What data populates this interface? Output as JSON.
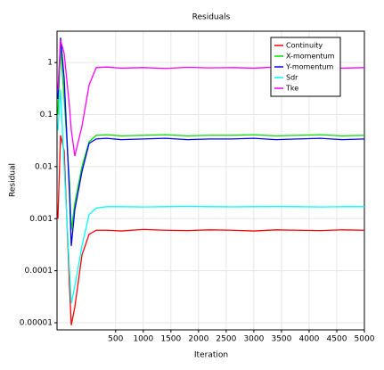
{
  "chart_data": {
    "type": "line",
    "title": "Residuals",
    "x_label": "Iteration",
    "y_label": "Residual",
    "x": [
      -544,
      -496,
      -431,
      -334,
      -302,
      -238,
      -109,
      20,
      149,
      342,
      600,
      1000,
      1400,
      1800,
      2200,
      2600,
      3000,
      3400,
      3800,
      4200,
      4600,
      5000
    ],
    "series": [
      {
        "name": "Continuity",
        "color": "#ff0000",
        "values": [
          0.001,
          0.04,
          0.02,
          5e-05,
          9e-06,
          2e-05,
          0.0002,
          0.0005,
          0.0006,
          0.0006,
          0.00058,
          0.00062,
          0.0006,
          0.00059,
          0.00061,
          0.0006,
          0.00058,
          0.00061,
          0.0006,
          0.00059,
          0.00061,
          0.0006
        ]
      },
      {
        "name": "X-momentum",
        "color": "#00e000",
        "values": [
          0.1,
          2,
          0.2,
          0.005,
          0.0006,
          0.002,
          0.01,
          0.03,
          0.04,
          0.041,
          0.039,
          0.04,
          0.041,
          0.039,
          0.04,
          0.04,
          0.041,
          0.039,
          0.04,
          0.041,
          0.039,
          0.04
        ]
      },
      {
        "name": "Y-momentum",
        "color": "#0000ff",
        "values": [
          0.2,
          3,
          0.5,
          0.003,
          0.0003,
          0.0015,
          0.008,
          0.028,
          0.034,
          0.035,
          0.033,
          0.034,
          0.035,
          0.033,
          0.034,
          0.034,
          0.035,
          0.033,
          0.034,
          0.035,
          0.033,
          0.034
        ]
      },
      {
        "name": "Sdr",
        "color": "#00ffff",
        "values": [
          0.05,
          0.3,
          0.01,
          0.0001,
          2.4e-05,
          5e-05,
          0.0003,
          0.0012,
          0.0016,
          0.0017,
          0.0017,
          0.00168,
          0.0017,
          0.00172,
          0.0017,
          0.00169,
          0.0017,
          0.00171,
          0.0017,
          0.00168,
          0.0017,
          0.0017
        ]
      },
      {
        "name": "Tke",
        "color": "#ff00ff",
        "values": [
          0.3,
          2.7,
          1.5,
          0.14,
          0.05,
          0.016,
          0.06,
          0.37,
          0.8,
          0.82,
          0.78,
          0.8,
          0.77,
          0.81,
          0.79,
          0.8,
          0.78,
          0.82,
          0.79,
          0.8,
          0.78,
          0.8
        ]
      }
    ],
    "xlim": [
      -560,
      5000
    ],
    "xticks": [
      500,
      1000,
      1500,
      2000,
      2500,
      3000,
      3500,
      4000,
      4500,
      5000
    ],
    "ylim": [
      7.3e-06,
      4
    ],
    "yticks": [
      1e-05,
      0.0001,
      0.001,
      0.01,
      0.1,
      1
    ],
    "y_scale": "log",
    "grid": true,
    "legend": "upper right"
  }
}
